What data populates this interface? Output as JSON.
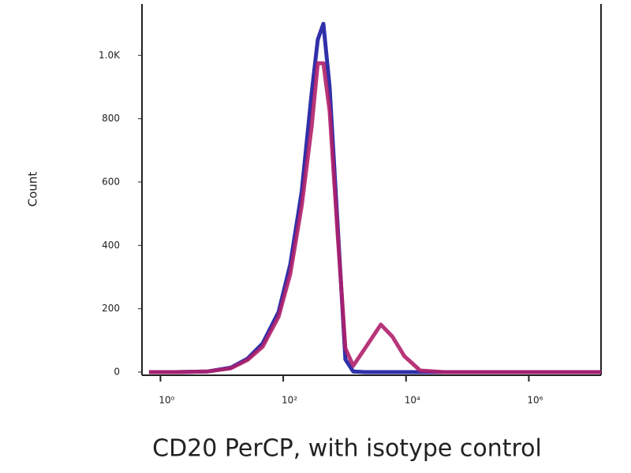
{
  "chart_data": {
    "type": "line",
    "xscale": "log",
    "x_label": "CD20 PerCP, with isotype control",
    "y_label": "Count",
    "x": [
      0.65,
      1.8,
      5.9,
      14,
      26,
      46,
      84,
      130,
      200,
      290,
      365,
      450,
      570,
      760,
      1030,
      1380,
      2150,
      3880,
      6000,
      9400,
      17000,
      41000,
      15000000
    ],
    "series": [
      {
        "color": "#1a1aa0",
        "values": [
          0,
          0,
          2,
          14,
          42,
          90,
          190,
          340,
          570,
          880,
          1050,
          1100,
          900,
          480,
          40,
          2,
          0,
          0,
          0,
          0,
          0,
          0,
          0
        ]
      },
      {
        "color": "#b0206a",
        "values": [
          0,
          0,
          2,
          12,
          38,
          80,
          175,
          310,
          525,
          775,
          975,
          975,
          825,
          450,
          75,
          20,
          75,
          150,
          112,
          50,
          5,
          0,
          0
        ]
      }
    ],
    "xlim": [
      0.5,
      15000000
    ],
    "xticks": [
      {
        "value": 1,
        "label": "10⁰"
      },
      {
        "value": 100,
        "label": "10²"
      },
      {
        "value": 10000,
        "label": "10⁴"
      },
      {
        "value": 1000000,
        "label": "10⁶"
      }
    ],
    "ylim": [
      0,
      1150
    ],
    "yticks": [
      0,
      200,
      400,
      600,
      800,
      {
        "value": 1000,
        "label": "1.0K"
      }
    ]
  }
}
